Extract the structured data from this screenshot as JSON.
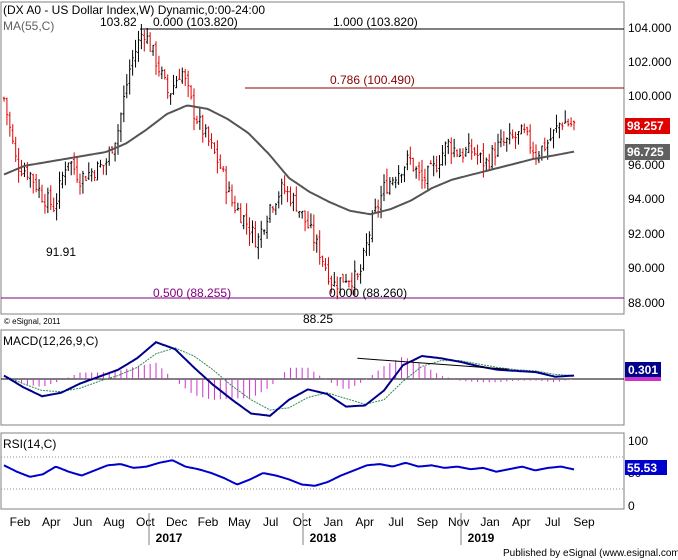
{
  "header": {
    "title": "(DX A0 - US Dollar Index,W) Dynamic,0:00-24:00",
    "ma_label": "MA(55,C)",
    "watermark": "© eSignal, 2011",
    "publisher": "Published by eSignal (www.esignal.com)"
  },
  "colors": {
    "up": "#000000",
    "down": "#e00000",
    "ma": "#555555",
    "macd": "#00008b",
    "signal": "#2e8b57",
    "hist": "#cc33cc",
    "rsi": "#0000cc",
    "fib_top": "#000000",
    "fib_786": "#8b0000",
    "fib_500": "#800080",
    "price_tag": "#e00000",
    "ma_tag": "#606060",
    "macd_tag": "#00008b",
    "rsi_tag": "#0000cc"
  },
  "chart_data": [
    {
      "type": "candlestick",
      "panel": "price",
      "ylim": [
        87.5,
        105.2
      ],
      "y_ticks": [
        "104.000",
        "102.000",
        "100.000",
        "98.000",
        "96.000",
        "94.000",
        "92.000",
        "90.000",
        "88.000"
      ],
      "y_tick_values": [
        104,
        102,
        100,
        98,
        96,
        94,
        92,
        90,
        88
      ],
      "x_months": [
        "Feb",
        "Apr",
        "Jun",
        "Aug",
        "Oct",
        "Dec",
        "Feb",
        "May",
        "Jul",
        "Oct",
        "Jan",
        "Apr",
        "Jul",
        "Sep",
        "Nov",
        "Jan",
        "Apr",
        "Jul",
        "Sep"
      ],
      "x_years": [
        "2017",
        "2018",
        "2019"
      ],
      "last_price": "98.257",
      "ma_value": "96.725",
      "hlines": [
        {
          "value": 103.82,
          "left_label": "103.82",
          "label": "0.000 (103.820)"
        },
        {
          "value": 103.82,
          "label": "1.000 (103.820)"
        },
        {
          "value": 100.49,
          "label": "0.786 (100.490)"
        },
        {
          "value": 88.255,
          "label": "0.500 (88.255)"
        }
      ],
      "annotations": [
        {
          "text": "91.91",
          "value": 91.91
        },
        {
          "text": "0.000 (88.260)",
          "value": 88.26
        },
        {
          "text": "88.25",
          "value": 88.25
        }
      ],
      "close_path": [
        99.8,
        96.0,
        95.5,
        94.2,
        93.5,
        96.4,
        95.2,
        95.6,
        96.0,
        98.0,
        101.8,
        103.8,
        102.0,
        100.0,
        101.5,
        99.0,
        97.5,
        96.0,
        93.8,
        92.8,
        91.5,
        93.6,
        94.6,
        93.8,
        92.4,
        90.8,
        89.0,
        89.5,
        89.3,
        92.5,
        94.6,
        95.5,
        96.3,
        95.0,
        95.8,
        97.2,
        96.6,
        96.8,
        96.0,
        97.0,
        97.4,
        97.8,
        96.6,
        97.3,
        98.5,
        98.257
      ],
      "ma_path": [
        95.4,
        95.9,
        96.1,
        96.3,
        96.5,
        96.7,
        97.2,
        98.0,
        98.9,
        99.4,
        99.2,
        98.6,
        97.8,
        96.6,
        95.2,
        94.4,
        93.8,
        93.3,
        93.1,
        93.4,
        93.9,
        94.6,
        95.1,
        95.4,
        95.7,
        96.0,
        96.3,
        96.5,
        96.725
      ]
    },
    {
      "type": "line",
      "panel": "macd",
      "label": "MACD(12,26,9,C)",
      "value": "0.301",
      "macd_path": [
        0.3,
        -0.7,
        -1.5,
        -1.2,
        -0.4,
        0.2,
        0.8,
        1.8,
        3.2,
        2.6,
        1.0,
        -0.5,
        -1.8,
        -3.0,
        -3.2,
        -1.8,
        -0.9,
        -1.3,
        -2.4,
        -2.3,
        -1.0,
        1.2,
        2.0,
        1.8,
        1.5,
        1.1,
        0.8,
        0.7,
        0.6,
        0.2,
        0.301
      ],
      "signal_path": [
        0.3,
        -0.4,
        -1.0,
        -1.1,
        -0.8,
        -0.2,
        0.3,
        1.0,
        2.2,
        2.7,
        2.0,
        0.8,
        -0.6,
        -1.8,
        -2.7,
        -2.5,
        -1.6,
        -1.2,
        -1.7,
        -2.2,
        -1.8,
        -0.2,
        1.1,
        1.6,
        1.6,
        1.3,
        1.0,
        0.8,
        0.7,
        0.4,
        0.3
      ],
      "trendline": [
        [
          1.8,
          0.62
        ],
        [
          0.85,
          0.885
        ]
      ]
    },
    {
      "type": "line",
      "panel": "rsi",
      "label": "RSI(14,C)",
      "value": "55.53",
      "ylim": [
        0,
        100
      ],
      "y_ticks": [
        "100",
        "50",
        "0"
      ],
      "levels": [
        70,
        30
      ],
      "rsi_path": [
        62,
        52,
        44,
        48,
        60,
        52,
        46,
        54,
        62,
        64,
        58,
        60,
        66,
        70,
        60,
        56,
        50,
        42,
        32,
        40,
        50,
        46,
        40,
        32,
        30,
        36,
        46,
        54,
        62,
        64,
        60,
        66,
        60,
        62,
        58,
        60,
        56,
        58,
        52,
        56,
        60,
        54,
        58,
        60,
        55.53
      ]
    }
  ]
}
